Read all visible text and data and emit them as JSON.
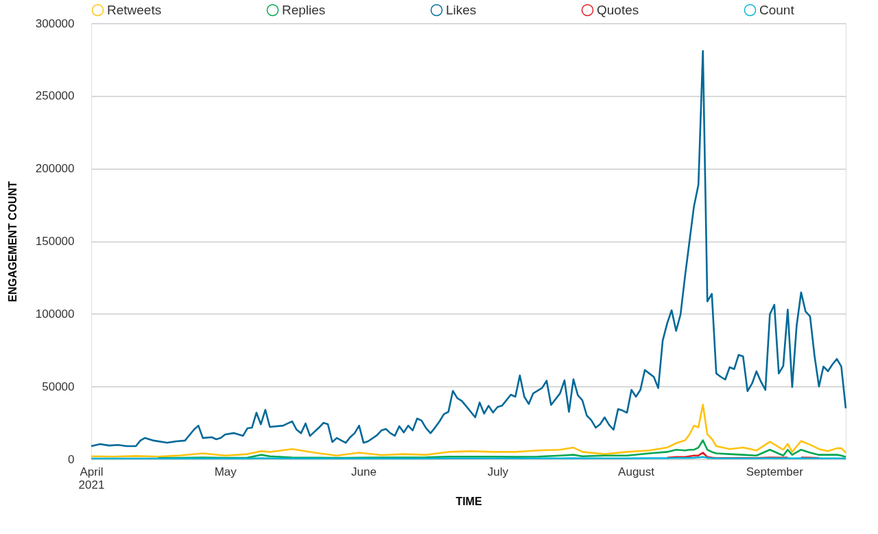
{
  "chart_data": {
    "type": "line",
    "xlabel": "TIME",
    "ylabel": "ENGAGEMENT COUNT",
    "xlim": [
      "2021-04-01",
      "2021-09-17"
    ],
    "xticks": [
      {
        "value": "2021-04-01",
        "label": "April 2021"
      },
      {
        "value": "2021-05-01",
        "label": "May"
      },
      {
        "value": "2021-06-01",
        "label": "June"
      },
      {
        "value": "2021-07-01",
        "label": "July"
      },
      {
        "value": "2021-08-01",
        "label": "August"
      },
      {
        "value": "2021-09-01",
        "label": "September"
      }
    ],
    "ylim": [
      0,
      300000
    ],
    "yticks": [
      0,
      50000,
      100000,
      150000,
      200000,
      250000,
      300000
    ],
    "grid": "y",
    "legend": "top",
    "line_style": "solid",
    "x": [
      "2021-04-01",
      "2021-04-06",
      "2021-04-11",
      "2021-04-16",
      "2021-04-21",
      "2021-04-26",
      "2021-05-01",
      "2021-05-06",
      "2021-05-09",
      "2021-05-11",
      "2021-05-16",
      "2021-05-21",
      "2021-05-26",
      "2021-05-31",
      "2021-06-05",
      "2021-06-10",
      "2021-06-15",
      "2021-06-20",
      "2021-06-25",
      "2021-06-30",
      "2021-07-05",
      "2021-07-10",
      "2021-07-15",
      "2021-07-18",
      "2021-07-20",
      "2021-07-25",
      "2021-07-30",
      "2021-08-04",
      "2021-08-08",
      "2021-08-10",
      "2021-08-12",
      "2021-08-13",
      "2021-08-14",
      "2021-08-15",
      "2021-08-16",
      "2021-08-17",
      "2021-08-18",
      "2021-08-19",
      "2021-08-22",
      "2021-08-25",
      "2021-08-28",
      "2021-08-31",
      "2021-09-03",
      "2021-09-04",
      "2021-09-05",
      "2021-09-07",
      "2021-09-09",
      "2021-09-11",
      "2021-09-13",
      "2021-09-15",
      "2021-09-16",
      "2021-09-17"
    ],
    "series": [
      {
        "name": "Retweets",
        "color": "#ffc20e",
        "values": [
          2000,
          1800,
          2200,
          1800,
          2600,
          4000,
          2500,
          3500,
          5500,
          5000,
          7000,
          4500,
          2500,
          4500,
          2800,
          3500,
          3000,
          5000,
          5500,
          5000,
          5000,
          6000,
          6500,
          8000,
          5000,
          3500,
          5000,
          6000,
          8000,
          11000,
          13000,
          17000,
          23000,
          22000,
          37500,
          17000,
          14000,
          9000,
          7000,
          8000,
          6000,
          12000,
          6500,
          10500,
          5000,
          12500,
          10000,
          7000,
          5500,
          7500,
          7500,
          4500
        ]
      },
      {
        "name": "Replies",
        "color": "#00a651",
        "values": [
          null,
          null,
          null,
          800,
          900,
          1200,
          900,
          1000,
          3000,
          2000,
          1200,
          1000,
          900,
          1000,
          1100,
          1200,
          1300,
          1800,
          1800,
          1800,
          1600,
          1800,
          2500,
          3000,
          2000,
          2500,
          2500,
          4000,
          5000,
          6500,
          6000,
          6500,
          6500,
          8000,
          13000,
          6500,
          5000,
          4000,
          3500,
          3000,
          2500,
          6500,
          2500,
          6500,
          3000,
          6500,
          4500,
          3000,
          3000,
          3000,
          2500,
          1500
        ]
      },
      {
        "name": "Likes",
        "color": "#006998",
        "x": [
          "2021-04-01",
          "2021-04-03",
          "2021-04-05",
          "2021-04-07",
          "2021-04-09",
          "2021-04-11",
          "2021-04-12",
          "2021-04-13",
          "2021-04-15",
          "2021-04-18",
          "2021-04-20",
          "2021-04-22",
          "2021-04-24",
          "2021-04-25",
          "2021-04-26",
          "2021-04-28",
          "2021-04-29",
          "2021-04-30",
          "2021-05-01",
          "2021-05-03",
          "2021-05-05",
          "2021-05-06",
          "2021-05-07",
          "2021-05-08",
          "2021-05-09",
          "2021-05-10",
          "2021-05-11",
          "2021-05-14",
          "2021-05-15",
          "2021-05-16",
          "2021-05-17",
          "2021-05-18",
          "2021-05-19",
          "2021-05-20",
          "2021-05-22",
          "2021-05-23",
          "2021-05-24",
          "2021-05-25",
          "2021-05-26",
          "2021-05-28",
          "2021-05-29",
          "2021-05-30",
          "2021-05-31",
          "2021-06-01",
          "2021-06-02",
          "2021-06-04",
          "2021-06-05",
          "2021-06-06",
          "2021-06-07",
          "2021-06-08",
          "2021-06-09",
          "2021-06-10",
          "2021-06-11",
          "2021-06-12",
          "2021-06-13",
          "2021-06-14",
          "2021-06-15",
          "2021-06-16",
          "2021-06-17",
          "2021-06-18",
          "2021-06-19",
          "2021-06-20",
          "2021-06-21",
          "2021-06-22",
          "2021-06-23",
          "2021-06-24",
          "2021-06-26",
          "2021-06-27",
          "2021-06-28",
          "2021-06-29",
          "2021-06-30",
          "2021-07-01",
          "2021-07-02",
          "2021-07-04",
          "2021-07-05",
          "2021-07-06",
          "2021-07-07",
          "2021-07-08",
          "2021-07-09",
          "2021-07-11",
          "2021-07-12",
          "2021-07-13",
          "2021-07-15",
          "2021-07-16",
          "2021-07-17",
          "2021-07-18",
          "2021-07-19",
          "2021-07-20",
          "2021-07-21",
          "2021-07-22",
          "2021-07-23",
          "2021-07-24",
          "2021-07-25",
          "2021-07-26",
          "2021-07-27",
          "2021-07-28",
          "2021-07-29",
          "2021-07-30",
          "2021-07-31",
          "2021-08-01",
          "2021-08-02",
          "2021-08-03",
          "2021-08-04",
          "2021-08-05",
          "2021-08-06",
          "2021-08-07",
          "2021-08-08",
          "2021-08-09",
          "2021-08-10",
          "2021-08-11",
          "2021-08-12",
          "2021-08-13",
          "2021-08-14",
          "2021-08-15",
          "2021-08-16",
          "2021-08-17",
          "2021-08-18",
          "2021-08-19",
          "2021-08-20",
          "2021-08-21",
          "2021-08-22",
          "2021-08-23",
          "2021-08-24",
          "2021-08-25",
          "2021-08-26",
          "2021-08-27",
          "2021-08-28",
          "2021-08-29",
          "2021-08-30",
          "2021-08-31",
          "2021-09-01",
          "2021-09-02",
          "2021-09-03",
          "2021-09-04",
          "2021-09-05",
          "2021-09-06",
          "2021-09-07",
          "2021-09-08",
          "2021-09-09",
          "2021-09-10",
          "2021-09-11",
          "2021-09-12",
          "2021-09-13",
          "2021-09-14",
          "2021-09-15",
          "2021-09-16",
          "2021-09-17"
        ],
        "values": [
          9000,
          10400,
          9400,
          9800,
          9000,
          9000,
          12800,
          14600,
          12800,
          11300,
          12300,
          12800,
          20300,
          23100,
          14600,
          15100,
          13700,
          14600,
          17000,
          18000,
          16100,
          21300,
          21700,
          32000,
          24000,
          34000,
          22200,
          23100,
          24600,
          26000,
          20300,
          17900,
          24600,
          16000,
          21700,
          25000,
          24100,
          11800,
          14600,
          11300,
          15100,
          17900,
          23100,
          11300,
          12300,
          16500,
          19800,
          20800,
          17900,
          16100,
          22700,
          18400,
          23100,
          19800,
          28000,
          26500,
          21300,
          17900,
          21700,
          26000,
          31000,
          32600,
          47000,
          42000,
          40100,
          36400,
          28800,
          39000,
          31400,
          36800,
          32100,
          35900,
          36800,
          44400,
          43000,
          57600,
          43000,
          38000,
          45300,
          49100,
          54000,
          37300,
          45300,
          54300,
          32600,
          55000,
          44000,
          40600,
          30000,
          26900,
          21700,
          24100,
          28800,
          23600,
          20300,
          34500,
          33500,
          32000,
          47700,
          43000,
          47700,
          61400,
          59000,
          56700,
          49000,
          81700,
          93500,
          102500,
          88300,
          99700,
          126000,
          150000,
          174000,
          189000,
          281000,
          108600,
          113800,
          59000,
          56700,
          54800,
          63300,
          62000,
          71800,
          70800,
          46800,
          52000,
          60500,
          53400,
          47700,
          99700,
          106300,
          59000,
          64200,
          103000,
          49600,
          92000,
          114800,
          101600,
          98300,
          71300,
          50000,
          63800,
          60500,
          65200,
          69000,
          63800,
          35000
        ]
      },
      {
        "name": "Quotes",
        "color": "#e31b23",
        "values": [
          null,
          null,
          null,
          null,
          null,
          null,
          null,
          null,
          null,
          null,
          null,
          null,
          null,
          null,
          null,
          null,
          null,
          null,
          null,
          null,
          null,
          null,
          null,
          null,
          null,
          null,
          null,
          null,
          1000,
          1500,
          1500,
          2000,
          2500,
          2500,
          4500,
          1500,
          1000,
          800,
          800,
          800,
          800,
          1200,
          1000,
          1200,
          null,
          1200,
          1000,
          800,
          null,
          null,
          null,
          null
        ]
      },
      {
        "name": "Count",
        "color": "#00b4d8",
        "values": [
          500,
          500,
          500,
          500,
          500,
          500,
          500,
          500,
          700,
          600,
          500,
          500,
          500,
          500,
          500,
          500,
          500,
          600,
          600,
          600,
          600,
          600,
          600,
          700,
          600,
          600,
          600,
          700,
          700,
          800,
          800,
          900,
          1000,
          1200,
          1500,
          900,
          700,
          600,
          600,
          600,
          600,
          700,
          600,
          700,
          600,
          700,
          600,
          600,
          600,
          600,
          600,
          500
        ]
      }
    ]
  }
}
